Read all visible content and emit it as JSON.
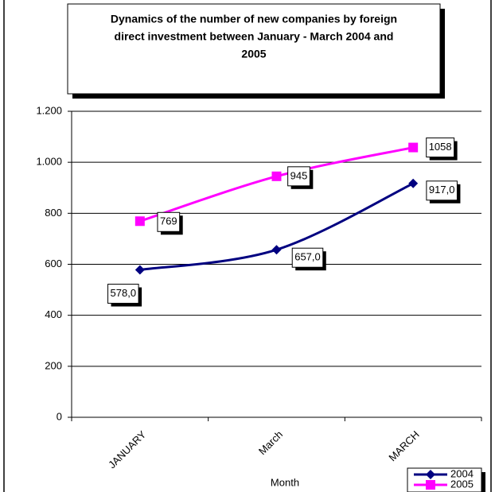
{
  "chart_data": {
    "type": "line",
    "title": [
      "Dynamics of the number of new companies by foreign",
      "direct investment between January - March 2004 and",
      "2005"
    ],
    "xlabel": "Month",
    "categories": [
      "JANUARY",
      "March",
      "MARCH"
    ],
    "series": [
      {
        "name": "2004",
        "color": "#000080",
        "marker": "diamond",
        "values": [
          578,
          657,
          917
        ],
        "value_labels": [
          "578,0",
          "657,0",
          "917,0"
        ]
      },
      {
        "name": "2005",
        "color": "#ff00ff",
        "marker": "square",
        "values": [
          769,
          945,
          1058
        ],
        "value_labels": [
          "769",
          "945",
          "1058"
        ]
      }
    ],
    "ylim": [
      0,
      1200
    ],
    "yticks": [
      0,
      200,
      400,
      600,
      800,
      {
        "value": 1000,
        "label": "1.000"
      },
      {
        "value": 1200,
        "label": "1.200"
      }
    ],
    "grid": true,
    "legend": "lower right"
  }
}
